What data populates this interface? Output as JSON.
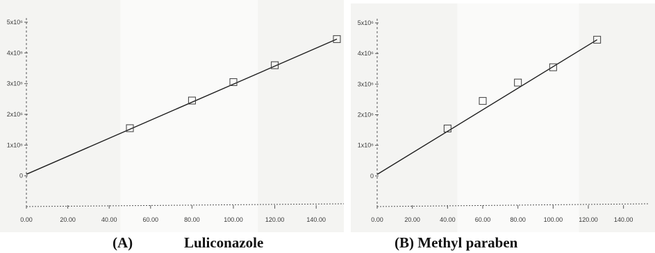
{
  "captions": {
    "a_letter": "(A)",
    "a_name": "Luliconazole",
    "b": "(B) Methyl paraben"
  },
  "colors": {
    "paper": "#f4f4f2",
    "line": "#1e1e1e",
    "marker": "#3a3a3a",
    "axis": "#555555"
  },
  "chart_data": [
    {
      "type": "scatter",
      "title": "",
      "xlabel": "",
      "ylabel": "",
      "xlim": [
        0,
        150
      ],
      "ylim": [
        -10,
        50
      ],
      "x_ticks": [
        0,
        20,
        40,
        60,
        80,
        100,
        120,
        140
      ],
      "x_tick_labels": [
        "0.00",
        "20.00",
        "40.00",
        "60.00",
        "80.00",
        "100.00",
        "120.00",
        "140.00"
      ],
      "y_ticks": [
        0,
        10,
        20,
        30,
        40,
        50
      ],
      "y_tick_labels": [
        "0",
        "1x10⁶",
        "2x10⁶",
        "3x10⁶",
        "4x10⁶",
        "5x10⁶"
      ],
      "series": [
        {
          "points": [
            [
              50,
              15.5
            ],
            [
              80,
              24.5
            ],
            [
              100,
              30.5
            ],
            [
              120,
              36
            ],
            [
              150,
              44.5
            ]
          ]
        }
      ],
      "fit_line": [
        [
          0,
          0.5
        ],
        [
          150,
          44.5
        ]
      ]
    },
    {
      "type": "scatter",
      "title": "",
      "xlabel": "",
      "ylabel": "",
      "xlim": [
        0,
        150
      ],
      "ylim": [
        -10,
        50
      ],
      "x_ticks": [
        0,
        20,
        40,
        60,
        80,
        100,
        120,
        140
      ],
      "x_tick_labels": [
        "0.00",
        "20.00",
        "40.00",
        "60.00",
        "80.00",
        "100.00",
        "120.00",
        "140.00"
      ],
      "y_ticks": [
        0,
        10,
        20,
        30,
        40,
        50
      ],
      "y_tick_labels": [
        "0",
        "1x10⁶",
        "2x10⁶",
        "3x10⁶",
        "4x10⁶",
        "5x10⁶"
      ],
      "series": [
        {
          "points": [
            [
              40,
              15.5
            ],
            [
              60,
              24.5
            ],
            [
              80,
              30.5
            ],
            [
              100,
              35.5
            ],
            [
              125,
              44.5
            ]
          ]
        }
      ],
      "fit_line": [
        [
          0,
          0.5
        ],
        [
          125,
          44.5
        ]
      ]
    }
  ]
}
